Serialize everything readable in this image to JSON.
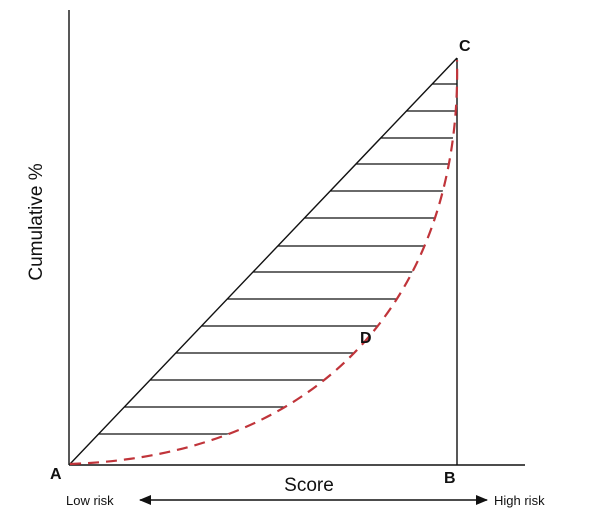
{
  "labels": {
    "y_axis": "Cumulative %",
    "x_axis": "Score",
    "point_a": "A",
    "point_b": "B",
    "point_c": "C",
    "point_d": "D",
    "low_risk": "Low risk",
    "high_risk": "High risk"
  },
  "colors": {
    "lines": "#111111",
    "curve": "#c0343a"
  }
}
